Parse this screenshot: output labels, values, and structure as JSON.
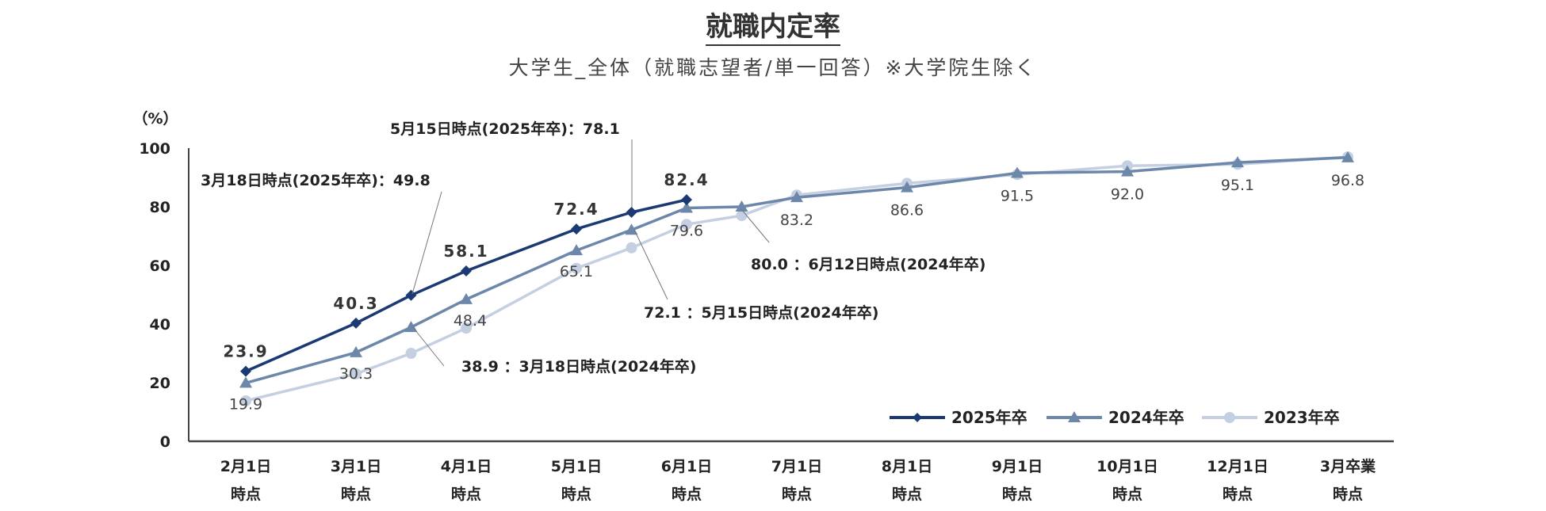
{
  "chart_data": {
    "type": "line",
    "title": "就職内定率",
    "subtitle": "大学生_全体（就職志望者/単一回答）※大学院生除く",
    "ylabel": "（%）",
    "xlabel": "",
    "ylim": [
      0,
      100
    ],
    "yticks": [
      "0",
      "20",
      "40",
      "60",
      "80",
      "100"
    ],
    "categories": [
      [
        "2月1日",
        "時点"
      ],
      [
        "3月1日",
        "時点"
      ],
      [
        "4月1日",
        "時点"
      ],
      [
        "5月1日",
        "時点"
      ],
      [
        "6月1日",
        "時点"
      ],
      [
        "7月1日",
        "時点"
      ],
      [
        "8月1日",
        "時点"
      ],
      [
        "9月1日",
        "時点"
      ],
      [
        "10月1日",
        "時点"
      ],
      [
        "12月1日",
        "時点"
      ],
      [
        "3月卒業",
        "時点"
      ]
    ],
    "legend_position": "bottom-right",
    "grid": false,
    "series": [
      {
        "name": "2025年卒",
        "color": "#1b3a73",
        "marker": "diamond",
        "points": [
          {
            "x": 0,
            "y": 23.9,
            "label": "23.9"
          },
          {
            "x": 1,
            "y": 40.3,
            "label": "40.3"
          },
          {
            "x": 1.5,
            "y": 49.8,
            "label": ""
          },
          {
            "x": 2,
            "y": 58.1,
            "label": "58.1"
          },
          {
            "x": 3,
            "y": 72.4,
            "label": "72.4"
          },
          {
            "x": 3.5,
            "y": 78.1,
            "label": ""
          },
          {
            "x": 4,
            "y": 82.4,
            "label": "82.4"
          }
        ]
      },
      {
        "name": "2024年卒",
        "color": "#6d87aa",
        "marker": "triangle",
        "points": [
          {
            "x": 0,
            "y": 19.9,
            "label": ""
          },
          {
            "x": 1,
            "y": 30.3,
            "label": ""
          },
          {
            "x": 1.5,
            "y": 38.9,
            "label": ""
          },
          {
            "x": 2,
            "y": 48.4,
            "label": ""
          },
          {
            "x": 3,
            "y": 65.1,
            "label": ""
          },
          {
            "x": 3.5,
            "y": 72.1,
            "label": ""
          },
          {
            "x": 4,
            "y": 79.6,
            "label": ""
          },
          {
            "x": 4.5,
            "y": 80.0,
            "label": ""
          },
          {
            "x": 5,
            "y": 83.2,
            "label": ""
          },
          {
            "x": 6,
            "y": 86.6,
            "label": ""
          },
          {
            "x": 7,
            "y": 91.5,
            "label": ""
          },
          {
            "x": 8,
            "y": 92.0,
            "label": ""
          },
          {
            "x": 9,
            "y": 95.1,
            "label": ""
          },
          {
            "x": 10,
            "y": 96.8,
            "label": ""
          }
        ]
      },
      {
        "name": "2023年卒",
        "color": "#c4d0e2",
        "marker": "circle",
        "points": [
          {
            "x": 0,
            "y": 13.8,
            "label": ""
          },
          {
            "x": 1,
            "y": 23.0,
            "label": ""
          },
          {
            "x": 1.5,
            "y": 30.0,
            "label": ""
          },
          {
            "x": 2,
            "y": 38.6,
            "label": ""
          },
          {
            "x": 3,
            "y": 59.0,
            "label": ""
          },
          {
            "x": 3.5,
            "y": 66.0,
            "label": ""
          },
          {
            "x": 4,
            "y": 74.0,
            "label": ""
          },
          {
            "x": 4.5,
            "y": 77.0,
            "label": ""
          },
          {
            "x": 5,
            "y": 84.0,
            "label": ""
          },
          {
            "x": 6,
            "y": 88.0,
            "label": ""
          },
          {
            "x": 7,
            "y": 91.0,
            "label": ""
          },
          {
            "x": 8,
            "y": 94.0,
            "label": ""
          },
          {
            "x": 9,
            "y": 94.5,
            "label": ""
          },
          {
            "x": 10,
            "y": 97.0,
            "label": ""
          }
        ]
      }
    ],
    "value_labels": [
      {
        "x": 0,
        "y": 19.9,
        "text": "19.9"
      },
      {
        "x": 1,
        "y": 30.3,
        "text": "30.3"
      },
      {
        "x": 2,
        "y": 48.4,
        "text": "48.4"
      },
      {
        "x": 3,
        "y": 65.1,
        "text": "65.1"
      },
      {
        "x": 4,
        "y": 79.6,
        "text": "79.6"
      },
      {
        "x": 5,
        "y": 83.2,
        "text": "83.2"
      },
      {
        "x": 6,
        "y": 86.6,
        "text": "86.6"
      },
      {
        "x": 7,
        "y": 91.5,
        "text": "91.5"
      },
      {
        "x": 8,
        "y": 92.0,
        "text": "92.0"
      },
      {
        "x": 9,
        "y": 95.1,
        "text": "95.1"
      },
      {
        "x": 10,
        "y": 96.8,
        "text": "96.8"
      }
    ],
    "annotations": [
      {
        "x": 1.5,
        "y": 49.8,
        "text": "3月18日時点(2025年卒)：49.8",
        "position": "above-left"
      },
      {
        "x": 3.5,
        "y": 78.1,
        "text": "5月15日時点(2025年卒)：78.1",
        "position": "above-left"
      },
      {
        "x": 4.5,
        "y": 80.0,
        "text": "80.0 ：6月12日時点(2024年卒)",
        "position": "below-right"
      },
      {
        "x": 3.5,
        "y": 72.1,
        "text": "72.1 ：5月15日時点(2024年卒)",
        "position": "below-right"
      },
      {
        "x": 1.5,
        "y": 38.9,
        "text": "38.9 ：3月18日時点(2024年卒)",
        "position": "below-right"
      }
    ]
  }
}
